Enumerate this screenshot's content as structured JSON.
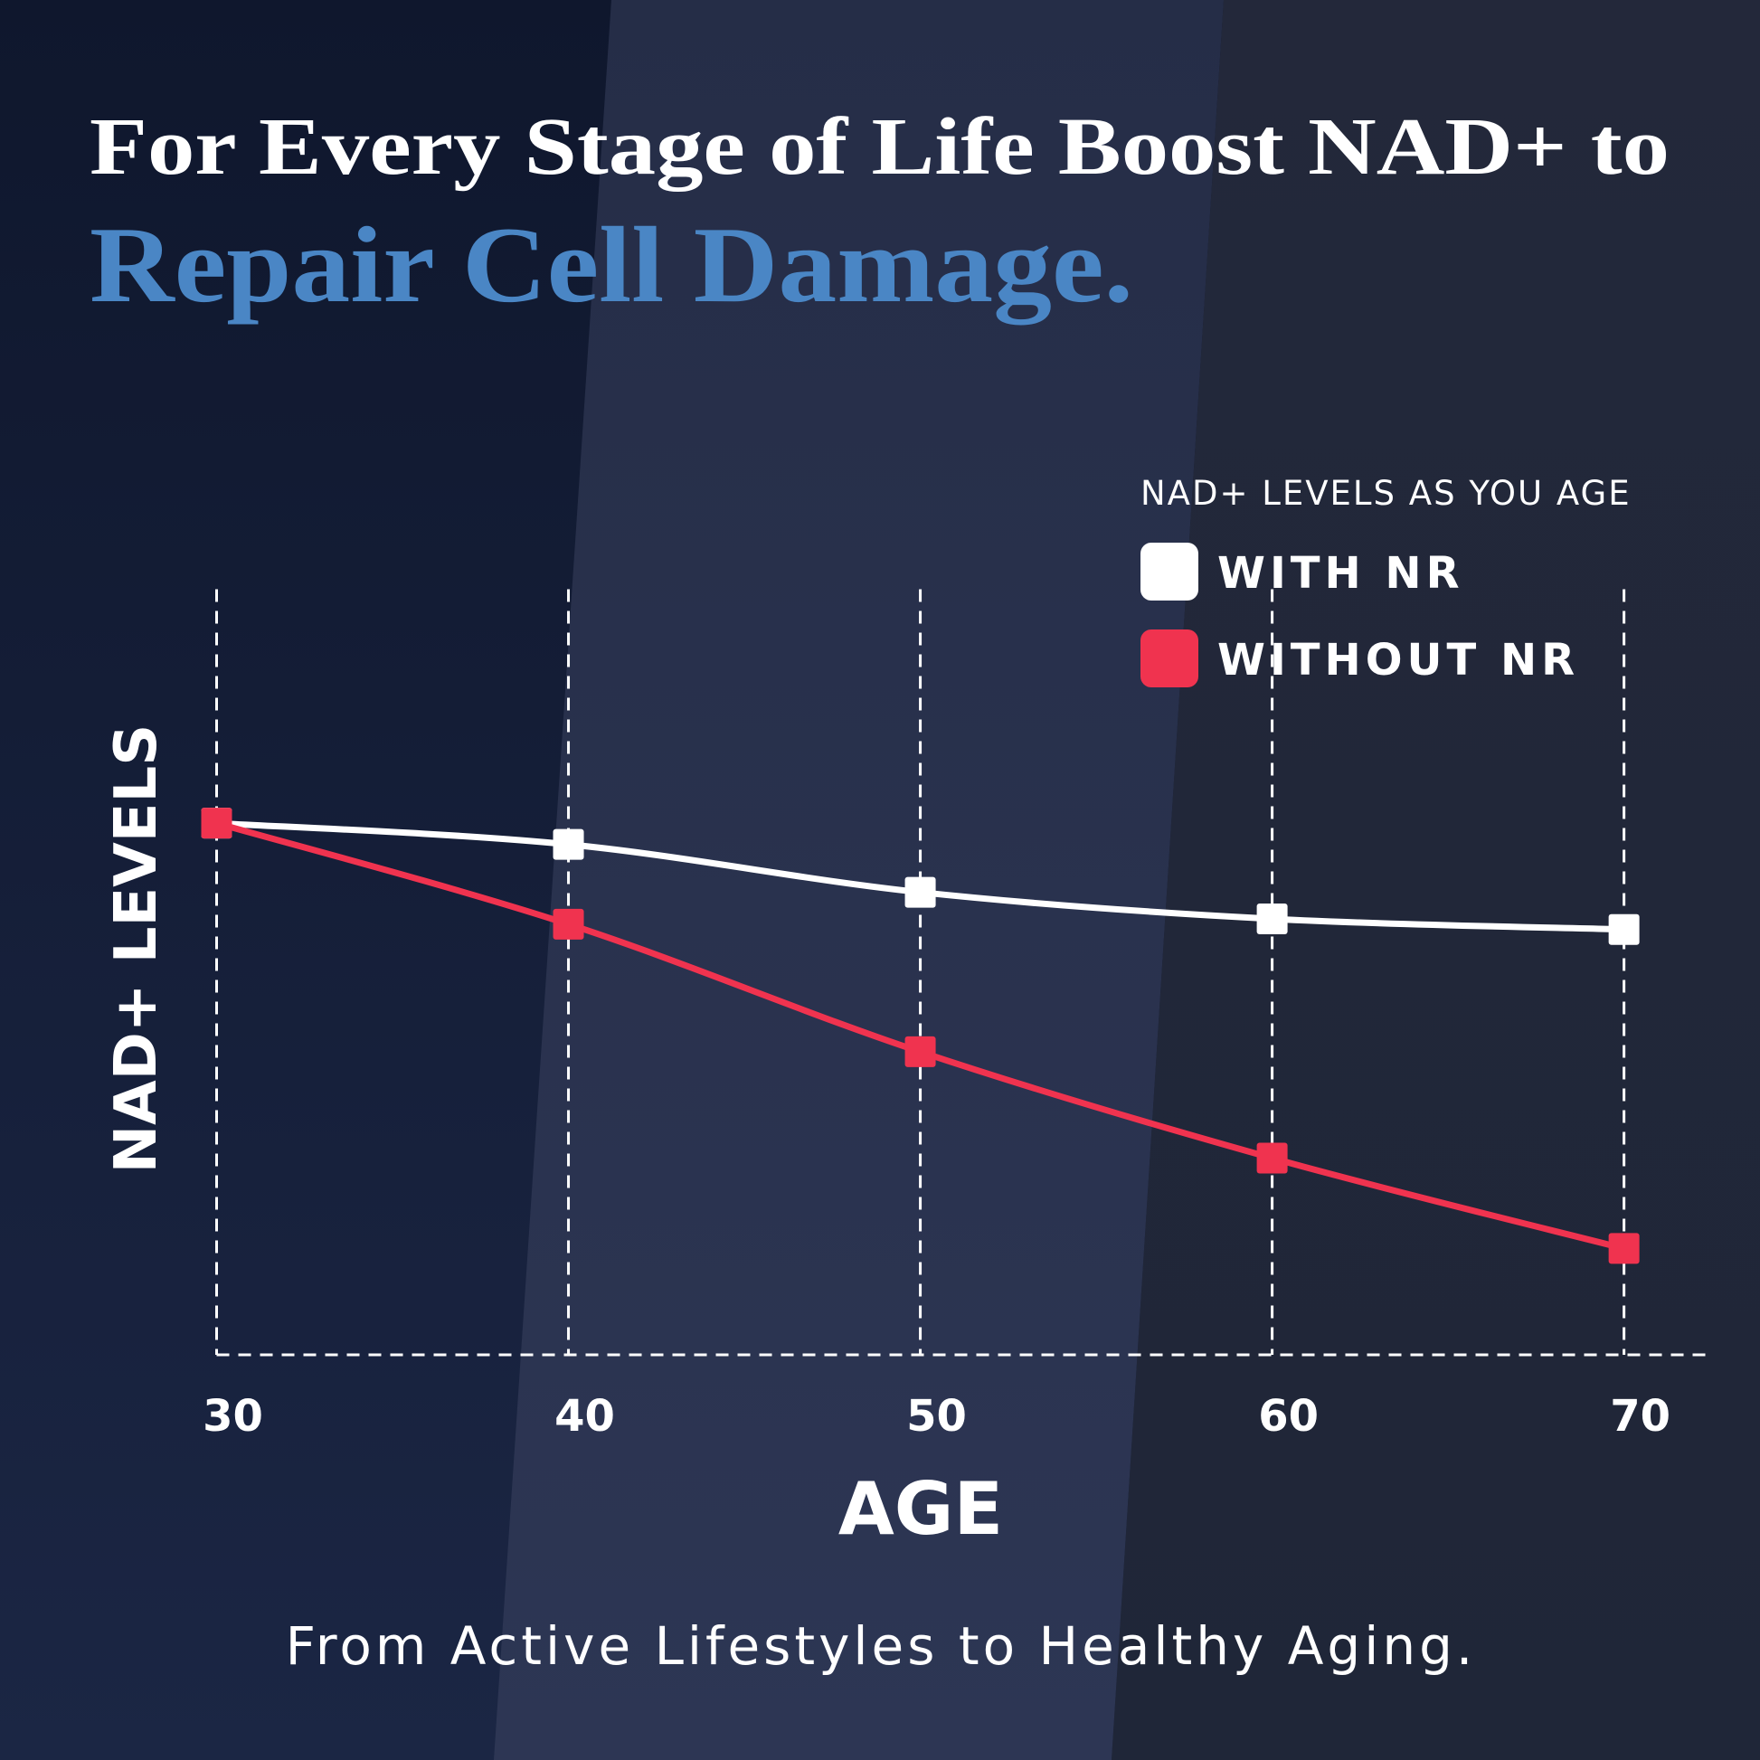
{
  "chart_data": {
    "type": "line",
    "title": "For Every Stage of Life  Boost NAD+ to",
    "title_highlight": "Repair Cell Damage.",
    "subtitle": "From Active Lifestyles to Healthy Aging.",
    "legend_title": "NAD+ LEVELS AS YOU AGE",
    "x_label": "AGE",
    "y_label": "NAD+ LEVELS",
    "x": [
      30,
      40,
      50,
      60,
      70
    ],
    "xlim": [
      30,
      72.4
    ],
    "xticks": [
      30,
      40,
      50,
      60,
      70
    ],
    "ylim": [
      0,
      144
    ],
    "grid": true,
    "legend": "upper right",
    "series": [
      {
        "name": "WITH NR",
        "color": "#ffffff",
        "values": [
          100,
          96,
          87,
          82,
          80
        ]
      },
      {
        "name": "WITHOUT NR",
        "color": "#f0334f",
        "values": [
          100,
          81,
          57,
          37,
          20
        ]
      }
    ]
  }
}
